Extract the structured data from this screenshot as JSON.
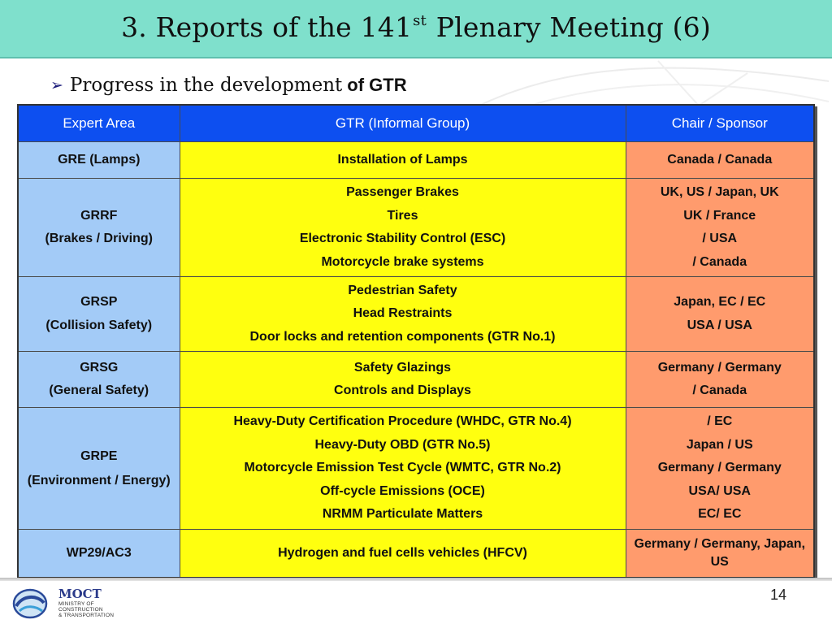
{
  "slide": {
    "title": {
      "prefix": "3. Reports of the 141",
      "sup": "st",
      "suffix": " Plenary Meeting (6)"
    },
    "subtitle": {
      "bullet_icon": "arrow-bullet-icon",
      "text": "Progress in the development",
      "bold_text": "of GTR"
    },
    "page_number": "14"
  },
  "table": {
    "headers": [
      "Expert Area",
      "GTR (Informal Group)",
      "Chair / Sponsor"
    ],
    "rows": [
      {
        "area": [
          "GRE (Lamps)"
        ],
        "gtrs": [
          "Installation of Lamps"
        ],
        "chairs": [
          "Canada / Canada"
        ]
      },
      {
        "area": [
          "GRRF",
          "(Brakes / Driving)"
        ],
        "gtrs": [
          "Passenger Brakes",
          "Tires",
          "Electronic Stability Control (ESC)",
          "Motorcycle brake systems"
        ],
        "chairs": [
          "UK, US / Japan, UK",
          "UK / France",
          "/ USA",
          "/ Canada"
        ]
      },
      {
        "area": [
          "GRSP",
          "(Collision Safety)"
        ],
        "gtrs": [
          "Pedestrian Safety",
          "Head Restraints",
          "Door locks and retention components (GTR No.1)"
        ],
        "chairs": [
          "Japan, EC / EC",
          "USA / USA"
        ]
      },
      {
        "area": [
          "GRSG",
          "(General Safety)"
        ],
        "gtrs": [
          "Safety Glazings",
          "Controls and Displays"
        ],
        "chairs": [
          "Germany / Germany",
          "/ Canada"
        ]
      },
      {
        "area": [
          "GRPE",
          "(Environment / Energy)"
        ],
        "gtrs": [
          "Heavy-Duty Certification Procedure (WHDC, GTR No.4)",
          "Heavy-Duty OBD (GTR No.5)",
          "Motorcycle Emission Test Cycle (WMTC, GTR No.2)",
          "Off-cycle Emissions (OCE)",
          "NRMM Particulate Matters"
        ],
        "chairs": [
          "/ EC",
          "Japan / US",
          "Germany / Germany",
          "USA/ USA",
          "EC/ EC"
        ]
      },
      {
        "area": [
          "WP29/AC3"
        ],
        "gtrs": [
          "Hydrogen and fuel cells vehicles (HFCV)"
        ],
        "chairs": [
          "Germany / Germany, Japan, US"
        ]
      }
    ]
  },
  "footer": {
    "logo_icon": "moct-logo-icon",
    "logo_name": "MOCT",
    "logo_lines": [
      "MINISTRY OF",
      "CONSTRUCTION",
      "& TRANSPORTATION"
    ]
  },
  "colors": {
    "title_bar": "#7fe0cc",
    "header_bg": "#0d4ff0",
    "area_bg": "#a3cbf7",
    "gtr_bg": "#ffff0f",
    "chair_bg": "#ff9b6d"
  }
}
